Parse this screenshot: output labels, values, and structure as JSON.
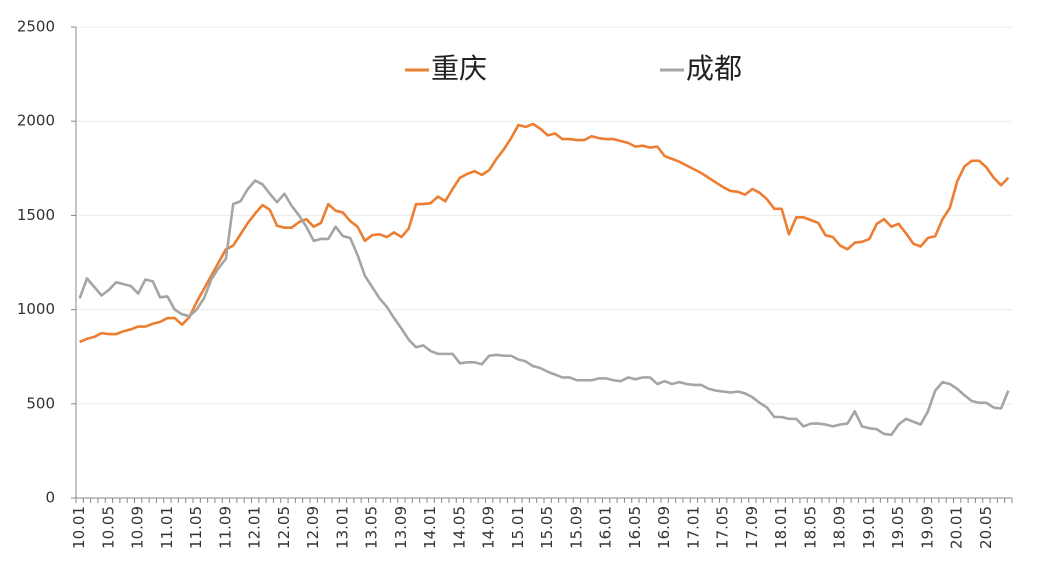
{
  "chart_data": {
    "type": "line",
    "categories": [
      "10.01",
      null,
      null,
      null,
      "10.05",
      null,
      null,
      null,
      "10.09",
      null,
      null,
      null,
      "11.01",
      null,
      null,
      null,
      "11.05",
      null,
      null,
      null,
      "11.09",
      null,
      null,
      null,
      "12.01",
      null,
      null,
      null,
      "12.05",
      null,
      null,
      null,
      "12.09",
      null,
      null,
      null,
      "13.01",
      null,
      null,
      null,
      "13.05",
      null,
      null,
      null,
      "13.09",
      null,
      null,
      null,
      "14.01",
      null,
      null,
      null,
      "14.05",
      null,
      null,
      null,
      "14.09",
      null,
      null,
      null,
      "15.01",
      null,
      null,
      null,
      "15.05",
      null,
      null,
      null,
      "15.09",
      null,
      null,
      null,
      "16.01",
      null,
      null,
      null,
      "16.05",
      null,
      null,
      null,
      "16.09",
      null,
      null,
      null,
      "17.01",
      null,
      null,
      null,
      "17.05",
      null,
      null,
      null,
      "17.09",
      null,
      null,
      null,
      "18.01",
      null,
      null,
      null,
      "18.05",
      null,
      null,
      null,
      "18.09",
      null,
      null,
      null,
      "19.01",
      null,
      null,
      null,
      "19.05",
      null,
      null,
      null,
      "19.09",
      null,
      null,
      null,
      "20.01",
      null,
      null,
      null,
      "20.05",
      null,
      null,
      null
    ],
    "series": [
      {
        "name": "重庆",
        "color": "#ed7d31",
        "values": [
          828,
          845,
          855,
          875,
          870,
          870,
          885,
          895,
          910,
          910,
          925,
          935,
          955,
          955,
          920,
          960,
          1040,
          1110,
          1180,
          1250,
          1320,
          1340,
          1400,
          1460,
          1510,
          1555,
          1530,
          1445,
          1435,
          1435,
          1465,
          1480,
          1440,
          1460,
          1560,
          1525,
          1515,
          1470,
          1440,
          1365,
          1395,
          1400,
          1385,
          1410,
          1385,
          1430,
          1560,
          1560,
          1565,
          1600,
          1575,
          1640,
          1700,
          1720,
          1735,
          1715,
          1740,
          1800,
          1850,
          1910,
          1980,
          1970,
          1985,
          1960,
          1925,
          1935,
          1905,
          1905,
          1900,
          1900,
          1920,
          1910,
          1905,
          1905,
          1895,
          1885,
          1865,
          1870,
          1860,
          1865,
          1815,
          1800,
          1785,
          1765,
          1745,
          1725,
          1700,
          1675,
          1650,
          1630,
          1625,
          1610,
          1640,
          1620,
          1585,
          1535,
          1535,
          1400,
          1490,
          1490,
          1475,
          1460,
          1395,
          1385,
          1340,
          1320,
          1355,
          1360,
          1375,
          1455,
          1480,
          1440,
          1455,
          1405,
          1350,
          1335,
          1380,
          1390,
          1480,
          1540,
          1680,
          1760,
          1790,
          1790,
          1755,
          1700,
          1660,
          1700
        ]
      },
      {
        "name": "成都",
        "color": "#a5a5a5",
        "values": [
          1060,
          1165,
          1120,
          1075,
          1105,
          1145,
          1135,
          1125,
          1085,
          1160,
          1150,
          1065,
          1070,
          1000,
          975,
          965,
          1000,
          1060,
          1160,
          1220,
          1270,
          1560,
          1575,
          1640,
          1685,
          1665,
          1615,
          1570,
          1615,
          1550,
          1500,
          1440,
          1365,
          1375,
          1375,
          1440,
          1390,
          1380,
          1290,
          1180,
          1120,
          1060,
          1015,
          955,
          900,
          840,
          800,
          810,
          780,
          765,
          765,
          765,
          715,
          720,
          720,
          710,
          755,
          760,
          755,
          755,
          735,
          725,
          700,
          690,
          670,
          655,
          640,
          640,
          625,
          625,
          625,
          635,
          635,
          625,
          620,
          640,
          630,
          640,
          640,
          605,
          620,
          605,
          615,
          605,
          600,
          600,
          580,
          570,
          565,
          560,
          565,
          555,
          535,
          505,
          480,
          430,
          430,
          420,
          420,
          380,
          395,
          395,
          390,
          380,
          390,
          395,
          460,
          380,
          370,
          365,
          340,
          335,
          390,
          420,
          405,
          390,
          460,
          570,
          615,
          605,
          580,
          545,
          515,
          505,
          505,
          480,
          475,
          570
        ]
      }
    ],
    "ylim": [
      0,
      2500
    ],
    "yticks": [
      0,
      500,
      1000,
      1500,
      2000,
      2500
    ],
    "grid": true,
    "legend": "top"
  }
}
